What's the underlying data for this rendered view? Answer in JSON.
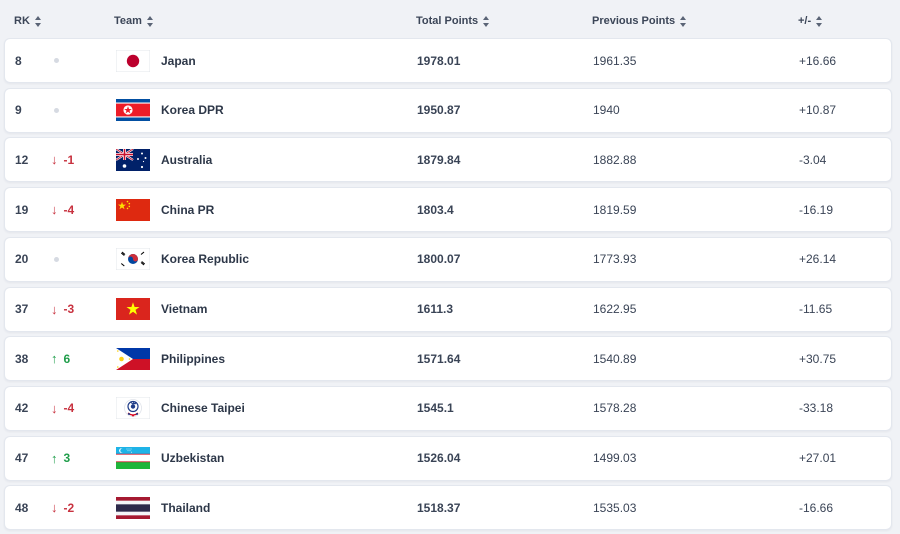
{
  "header": {
    "rank": "RK",
    "team": "Team",
    "total_points": "Total Points",
    "previous_points": "Previous Points",
    "diff": "+/-"
  },
  "colors": {
    "up": "#1f9d4a",
    "down": "#c8323f",
    "neutral_dot": "#d6dae2"
  },
  "rows": [
    {
      "rank": "8",
      "move_dir": "none",
      "move": "",
      "flag": "japan-flag",
      "team": "Japan",
      "total": "1978.01",
      "previous": "1961.35",
      "diff": "+16.66"
    },
    {
      "rank": "9",
      "move_dir": "none",
      "move": "",
      "flag": "korea-dpr-flag",
      "team": "Korea DPR",
      "total": "1950.87",
      "previous": "1940",
      "diff": "+10.87"
    },
    {
      "rank": "12",
      "move_dir": "down",
      "move": "-1",
      "flag": "australia-flag",
      "team": "Australia",
      "total": "1879.84",
      "previous": "1882.88",
      "diff": "-3.04"
    },
    {
      "rank": "19",
      "move_dir": "down",
      "move": "-4",
      "flag": "china-pr-flag",
      "team": "China PR",
      "total": "1803.4",
      "previous": "1819.59",
      "diff": "-16.19"
    },
    {
      "rank": "20",
      "move_dir": "none",
      "move": "",
      "flag": "korea-republic-flag",
      "team": "Korea Republic",
      "total": "1800.07",
      "previous": "1773.93",
      "diff": "+26.14"
    },
    {
      "rank": "37",
      "move_dir": "down",
      "move": "-3",
      "flag": "vietnam-flag",
      "team": "Vietnam",
      "total": "1611.3",
      "previous": "1622.95",
      "diff": "-11.65"
    },
    {
      "rank": "38",
      "move_dir": "up",
      "move": "6",
      "flag": "philippines-flag",
      "team": "Philippines",
      "total": "1571.64",
      "previous": "1540.89",
      "diff": "+30.75"
    },
    {
      "rank": "42",
      "move_dir": "down",
      "move": "-4",
      "flag": "chinese-taipei-flag",
      "team": "Chinese Taipei",
      "total": "1545.1",
      "previous": "1578.28",
      "diff": "-33.18"
    },
    {
      "rank": "47",
      "move_dir": "up",
      "move": "3",
      "flag": "uzbekistan-flag",
      "team": "Uzbekistan",
      "total": "1526.04",
      "previous": "1499.03",
      "diff": "+27.01"
    },
    {
      "rank": "48",
      "move_dir": "down",
      "move": "-2",
      "flag": "thailand-flag",
      "team": "Thailand",
      "total": "1518.37",
      "previous": "1535.03",
      "diff": "-16.66"
    }
  ]
}
